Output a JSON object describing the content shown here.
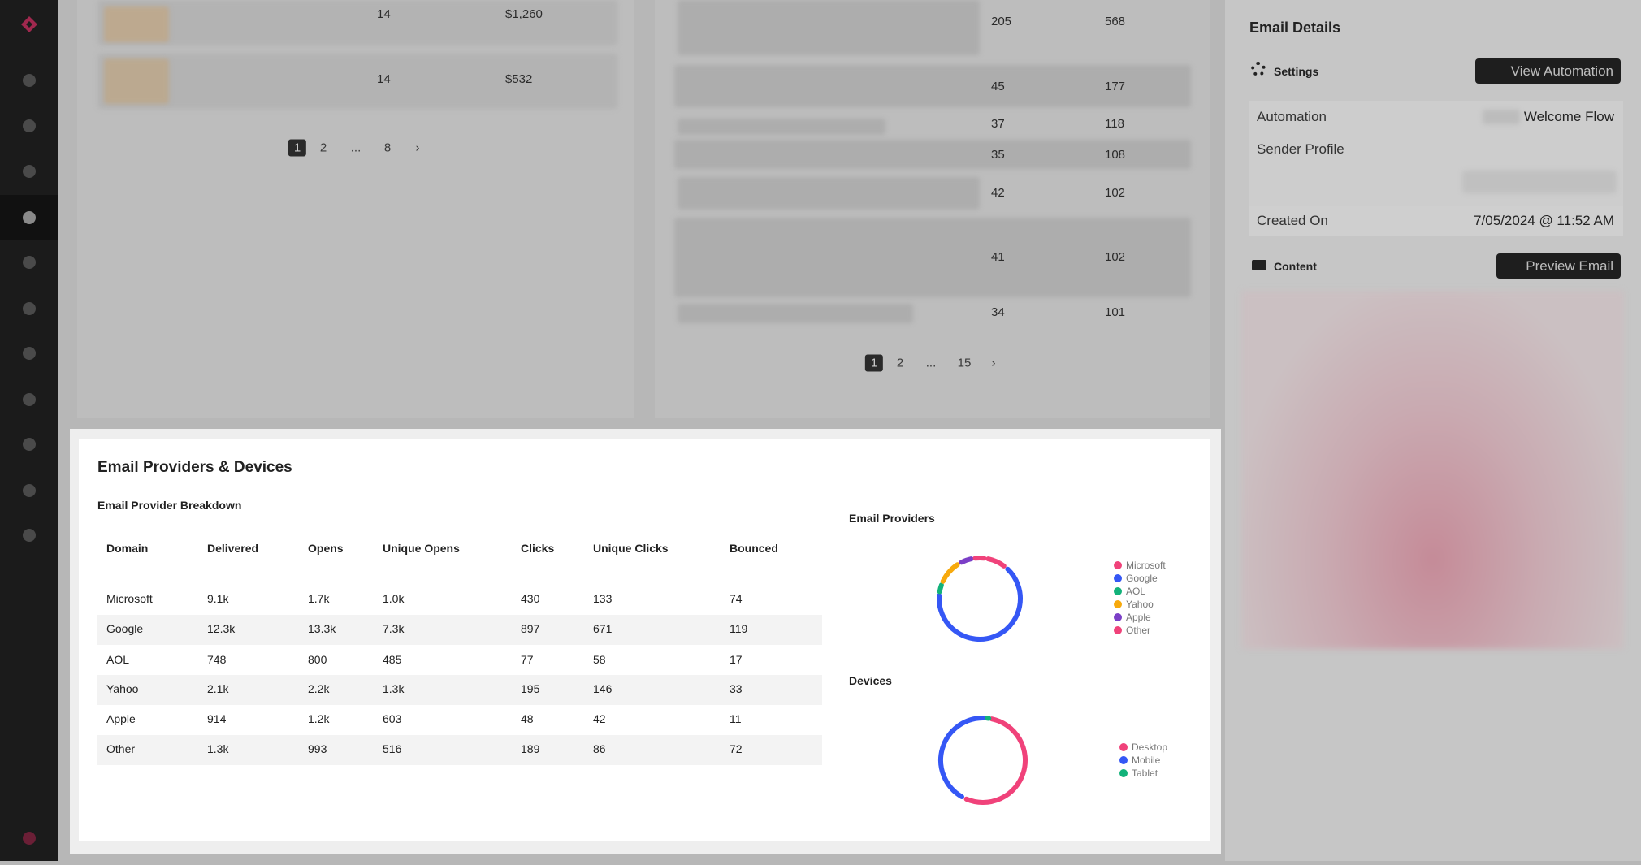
{
  "top_left_table": {
    "rows": [
      [
        "14",
        "$1,260"
      ],
      [
        "14",
        "$532"
      ]
    ],
    "pagination": [
      "1",
      "2",
      "...",
      "8"
    ]
  },
  "top_middle_table": {
    "rows": [
      [
        "205",
        "568"
      ],
      [
        "45",
        "177"
      ],
      [
        "37",
        "118"
      ],
      [
        "35",
        "108"
      ],
      [
        "42",
        "102"
      ],
      [
        "41",
        "102"
      ],
      [
        "34",
        "101"
      ]
    ],
    "pagination": [
      "1",
      "2",
      "...",
      "15"
    ]
  },
  "email_details": {
    "title": "Email Details",
    "settings_label": "Settings",
    "view_button": "View Automation",
    "fields": [
      {
        "label": "Automation",
        "value": "Welcome Flow"
      },
      {
        "label": "Sender Profile"
      },
      {
        "label": "Created On",
        "value": "7/05/2024 @ 11:52 AM"
      }
    ],
    "content_label": "Content",
    "preview_button": "Preview Email"
  },
  "modal": {
    "title": "Email Providers & Devices",
    "table_title": "Email Provider Breakdown",
    "table": {
      "columns": [
        "Domain",
        "Delivered",
        "Opens",
        "Unique Opens",
        "Clicks",
        "Unique Clicks",
        "Bounced"
      ],
      "rows": [
        [
          "Microsoft",
          "9.1k",
          "1.7k",
          "1.0k",
          "430",
          "133",
          "74"
        ],
        [
          "Google",
          "12.3k",
          "13.3k",
          "7.3k",
          "897",
          "671",
          "119"
        ],
        [
          "AOL",
          "748",
          "800",
          "485",
          "77",
          "58",
          "17"
        ],
        [
          "Yahoo",
          "2.1k",
          "2.2k",
          "1.3k",
          "195",
          "146",
          "33"
        ],
        [
          "Apple",
          "914",
          "1.2k",
          "603",
          "48",
          "42",
          "11"
        ],
        [
          "Other",
          "1.3k",
          "993",
          "516",
          "189",
          "86",
          "72"
        ]
      ]
    },
    "providers_chart": {
      "type": "pie",
      "title": "Email Providers",
      "categories": [
        "Microsoft",
        "Google",
        "AOL",
        "Yahoo",
        "Apple",
        "Other"
      ],
      "values": [
        9,
        68,
        4,
        11,
        6,
        5
      ],
      "colors": [
        "#f0427a",
        "#3557f5",
        "#12b27a",
        "#f7a90c",
        "#7b3fc7",
        "#f0427a"
      ]
    },
    "devices_chart": {
      "type": "pie",
      "title": "Devices",
      "categories": [
        "Desktop",
        "Mobile",
        "Tablet"
      ],
      "values": [
        55,
        44,
        1
      ],
      "colors": [
        "#f0427a",
        "#3557f5",
        "#12b27a"
      ]
    }
  }
}
